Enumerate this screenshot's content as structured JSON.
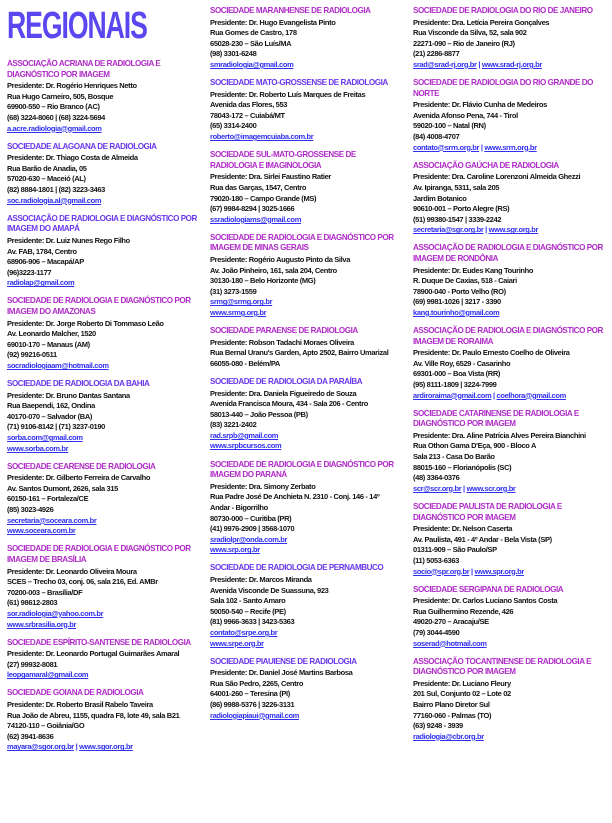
{
  "page_title": "REGIONAIS",
  "colors": {
    "title": "#5A47F0",
    "magenta": "#B02CC8",
    "violet": "#6A38EC",
    "link": "#3030F0",
    "text": "#131313"
  },
  "columns": [
    [
      {
        "name": "Associação Acriana de Radiologia e Diagnóstico por Imagem",
        "color": "magenta",
        "lines": [
          "Presidente: Dr. Rogério Henriques Netto",
          "Rua Hugo Carneiro, 505, Bosque",
          "69900-550 – Rio Branco (AC)",
          "(68) 3224-8060 | (68) 3224-5694"
        ],
        "link_lines": [
          [
            "a.acre.radiologia@gmail.com"
          ]
        ]
      },
      {
        "name": "Sociedade Alagoana de Radiologia",
        "color": "violet",
        "lines": [
          "Presidente: Dr. Thiago Costa de Almeida",
          "Rua Barão de Anadia, 05",
          "57020-630 – Maceió (AL)",
          "(82) 8884-1801 | (82) 3223-3463"
        ],
        "link_lines": [
          [
            "soc.radiologia.al@gmail.com"
          ]
        ]
      },
      {
        "name": "Associação de Radiologia e Diagnóstico por Imagem do Amapá",
        "color": "violet",
        "lines": [
          "Presidente: Dr. Luiz Nunes Rego Filho",
          "Av. FAB, 1784, Centro",
          "68906-906 – Macapá/AP",
          "(96)3223-1177"
        ],
        "link_lines": [
          [
            "radiolap@gmail.com"
          ]
        ]
      },
      {
        "name": "Sociedade de Radiologia e Diagnóstico por Imagem do Amazonas",
        "color": "magenta",
        "lines": [
          "Presidente: Dr. Jorge Roberto Di Tommaso Leão",
          "Av. Leonardo Malcher, 1520",
          "69010-170 – Manaus (AM)",
          "(92) 99216-0511"
        ],
        "link_lines": [
          [
            "socradiologiaam@hotmail.com"
          ]
        ]
      },
      {
        "name": "Sociedade de Radiologia da Bahia",
        "color": "violet",
        "lines": [
          "Presidente: Dr. Bruno Dantas Santana",
          "Rua Baependi, 162, Ondina",
          "40170-070 – Salvador (BA)",
          "(71) 9106-8142 | (71) 3237-0190"
        ],
        "link_lines": [
          [
            "sorba.com@gmail.com"
          ],
          [
            "www.sorba.com.br"
          ]
        ]
      },
      {
        "name": "Sociedade Cearense de Radiologia",
        "color": "magenta",
        "lines": [
          "Presidente: Dr. Gilberto Ferreira de Carvalho",
          "Av. Santos Dumont, 2626, sala 315",
          "60150-161 – Fortaleza/CE",
          "(85) 3023-4926"
        ],
        "link_lines": [
          [
            "secretaria@soceara.com.br"
          ],
          [
            "www.soceara.com.br"
          ]
        ]
      },
      {
        "name": "Sociedade de Radiologia e Diagnóstico por Imagem de Brasília",
        "color": "magenta",
        "lines": [
          "Presidente: Dr. Leonardo Oliveira Moura",
          "SCES – Trecho 03, conj. 06, sala 216, Ed. AMBr",
          "70200-003 – Brasília/DF",
          "(61) 98612-2803"
        ],
        "link_lines": [
          [
            "sor.radiologia@yahoo.com.br"
          ],
          [
            "www.srbrasilia.org.br"
          ]
        ]
      },
      {
        "name": "Sociedade Espírito-Santense de Radiologia",
        "color": "magenta",
        "lines": [
          "Presidente: Dr. Leonardo Portugal Guimarães Amaral",
          "(27) 99932-8081"
        ],
        "link_lines": [
          [
            "leopgamaral@gmail.com"
          ]
        ]
      },
      {
        "name": "Sociedade Goiana de Radiologia",
        "color": "magenta",
        "lines": [
          "Presidente: Dr. Roberto Brasil Rabelo Taveira",
          "Rua João de Abreu, 1155, quadra F8, lote 49, sala B21",
          "74120-110 – Goiânia/GO",
          "(62) 3941-8636"
        ],
        "link_lines": [
          [
            "mayara@sgor.org.br",
            "www.sgor.org.br"
          ]
        ]
      }
    ],
    [
      {
        "name": "Sociedade Maranhense de Radiologia",
        "color": "magenta",
        "lines": [
          "Presidente: Dr. Hugo Evangelista Pinto",
          "Rua Gomes de Castro, 178",
          "65028-230 – São Luís/MA",
          "(98) 3301-6248"
        ],
        "link_lines": [
          [
            "smradiologia@gmail.com"
          ]
        ]
      },
      {
        "name": "Sociedade Mato-Grossense de Radiologia",
        "color": "violet",
        "lines": [
          "Presidente: Dr. Roberto Luís Marques de Freitas",
          "Avenida das Flores, 553",
          "78043-172 – Cuiabá/MT",
          "(65) 3314-2400"
        ],
        "link_lines": [
          [
            "roberto@imagemcuiaba.com.br"
          ]
        ]
      },
      {
        "name": "Sociedade Sul-Mato-Grossense de Radiologia e Imaginologia",
        "color": "magenta",
        "lines": [
          "Presidente: Dra. Sirlei Faustino Ratier",
          "Rua das Garças, 1547, Centro",
          "79020-180 – Campo Grande (MS)",
          "(67) 9984-8294 | 3025-1666"
        ],
        "link_lines": [
          [
            "ssradiologiams@gmail.com"
          ]
        ]
      },
      {
        "name": "Sociedade de Radiologia e Diagnóstico por Imagem de Minas Gerais",
        "color": "magenta",
        "lines": [
          "Presidente: Rogério Augusto Pinto da Silva",
          "Av. João Pinheiro, 161, sala 204, Centro",
          "30130-180 – Belo Horizonte (MG)",
          "(31) 3273-1559"
        ],
        "link_lines": [
          [
            "srmg@srmg.org.br"
          ],
          [
            "www.srmg.org.br"
          ]
        ]
      },
      {
        "name": "Sociedade Paraense de Radiologia",
        "color": "magenta",
        "lines": [
          "Presidente: Robson Tadachi Moraes Oliveira",
          "Rua Bernal Uranu's Garden, Apto 2502, Bairro Umarizal",
          "66055-080 - Belém/PA"
        ],
        "link_lines": []
      },
      {
        "name": "Sociedade de Radiologia da Paraíba",
        "color": "violet",
        "lines": [
          "Presidente: Dra. Daniela Figueiredo de Souza",
          "Avenida Francisca Moura, 434 - Sala 206 - Centro",
          "58013-440 – João Pessoa (PB)",
          "(83) 3221-2402"
        ],
        "link_lines": [
          [
            "rad.srpb@gmail.com"
          ],
          [
            "www.srpbcursos.com"
          ]
        ]
      },
      {
        "name": "Sociedade de Radiologia e Diagnóstico por Imagem do Paraná",
        "color": "magenta",
        "lines": [
          "Presidente: Dra. Simony Zerbato",
          "Rua Padre José De Anchieta N. 2310 - Conj. 146 - 14º",
          "Andar - Bigorrilho",
          "80730-000 – Curitiba (PR)",
          "(41) 9976-2909 | 3568-1070"
        ],
        "link_lines": [
          [
            "sradiolpr@onda.com.br"
          ],
          [
            "www.srp.org.br"
          ]
        ]
      },
      {
        "name": "Sociedade de Radiologia de Pernambuco",
        "color": "violet",
        "lines": [
          "Presidente: Dr. Marcos Miranda",
          "Avenida Visconde De Suassuna, 923",
          "Sala 102 - Santo Amaro",
          "50050-540 – Recife (PE)",
          "(81) 9966-3633 | 3423-5363"
        ],
        "link_lines": [
          [
            "contato@srpe.org.br"
          ],
          [
            "www.srpe.org.br"
          ]
        ]
      },
      {
        "name": "Sociedade Piauiense de Radiologia",
        "color": "violet",
        "lines": [
          "Presidente: Dr. Daniel José Martins Barbosa",
          "Rua São Pedro, 2265, Centro",
          "64001-260 – Teresina (PI)",
          "(86) 9988-5376 | 3226-3131"
        ],
        "link_lines": [
          [
            "radiologiapiaui@gmail.com"
          ]
        ]
      }
    ],
    [
      {
        "name": "Sociedade de Radiologia do Rio de Janeiro",
        "color": "magenta",
        "lines": [
          "Presidente: Dra. Letícia Pereira Gonçalves",
          "Rua Visconde da Silva, 52, sala 902",
          "22271-090 – Rio de Janeiro (RJ)",
          "(21) 2286-8877"
        ],
        "link_lines": [
          [
            "srad@srad-rj.org.br",
            "www.srad-rj.org.br"
          ]
        ]
      },
      {
        "name": "Sociedade de Radiologia do Rio Grande do Norte",
        "color": "magenta",
        "lines": [
          "Presidente: Dr. Flávio Cunha de Medeiros",
          "Avenida Afonso Pena, 744 - Tirol",
          "59020-100 – Natal (RN)",
          "(84) 4008-4707"
        ],
        "link_lines": [
          [
            "contato@srrn.org.br",
            "www.srrn.org.br"
          ]
        ]
      },
      {
        "name": "Associação Gaúcha de Radiologia",
        "color": "magenta",
        "lines": [
          "Presidente: Dra. Caroline Lorenzoni Almeida Ghezzi",
          "Av. Ipiranga, 5311, sala 205",
          "Jardim Botanico",
          "90610-001 – Porto Alegre (RS)",
          "(51) 99380-1547 | 3339-2242"
        ],
        "link_lines": [
          [
            "secretaria@sgr.org.br",
            "www.sgr.org.br"
          ]
        ]
      },
      {
        "name": "Associação de Radiologia e Diagnóstico por Imagem de Rondônia",
        "color": "magenta",
        "lines": [
          "Presidente: Dr. Eudes Kang Tourinho",
          "R. Duque De Caxias, 518 - Caiari",
          "78900-040 - Porto Velho (RO)",
          "(69) 9981-1026 | 3217 - 3390"
        ],
        "link_lines": [
          [
            "kang.tourinho@gmail.com"
          ]
        ]
      },
      {
        "name": "Associação de Radiologia e Diagnóstico por Imagem de Roraima",
        "color": "magenta",
        "lines": [
          "Presidente: Dr. Paulo Ernesto Coelho de Oliveira",
          "Av. Ville Roy, 6529 - Casarinho",
          "69301-000 – Boa Vista (RR)",
          "(95) 8111-1809 | 3224-7999"
        ],
        "link_lines": [
          [
            "ardiroraima@gmail.com",
            "coelhora@gmail.com"
          ]
        ]
      },
      {
        "name": "Sociedade Catarinense de Radiologia e Diagnóstico por Imagem",
        "color": "magenta",
        "lines": [
          "Presidente: Dra. Aline Patrícia Alves Pereira Bianchini",
          "Rua Othon Gama D'Eça, 900 - Bloco A",
          "Sala 213 - Casa Do Barão",
          "88015-160 – Florianópolis (SC)",
          "(48) 3364-0376"
        ],
        "link_lines": [
          [
            "scr@scr.org.br",
            "www.scr.org.br"
          ]
        ]
      },
      {
        "name": "Sociedade Paulista de Radiologia e Diagnóstico por Imagem",
        "color": "magenta",
        "lines": [
          "Presidente: Dr. Nelson Caserta",
          "Av. Paulista, 491 - 4º Andar - Bela Vista (SP)",
          "01311-909 – São Paulo/SP",
          "(11) 5053-6363"
        ],
        "link_lines": [
          [
            "socio@spr.org.br",
            "www.spr.org.br"
          ]
        ]
      },
      {
        "name": "Sociedade Sergipana de Radiologia",
        "color": "magenta",
        "lines": [
          "Presidente: Dr. Carlos Luciano Santos Costa",
          "Rua Guilhermino Rezende, 426",
          "49020-270 – Aracaju/SE",
          "(79) 3044-4590"
        ],
        "link_lines": [
          [
            "soserad@hotmail.com"
          ]
        ]
      },
      {
        "name": "Associação Tocantinense de Radiologia e Diagnóstico por Imagem",
        "color": "magenta",
        "lines": [
          "Presidente: Dr. Luciano Fleury",
          "201 Sul, Conjunto 02 – Lote 02",
          "Bairro Plano Diretor Sul",
          "77160-060 - Palmas (TO)",
          "(63) 9248 - 3939"
        ],
        "link_lines": [
          [
            "radiologia@cbr.org.br"
          ]
        ]
      }
    ]
  ]
}
